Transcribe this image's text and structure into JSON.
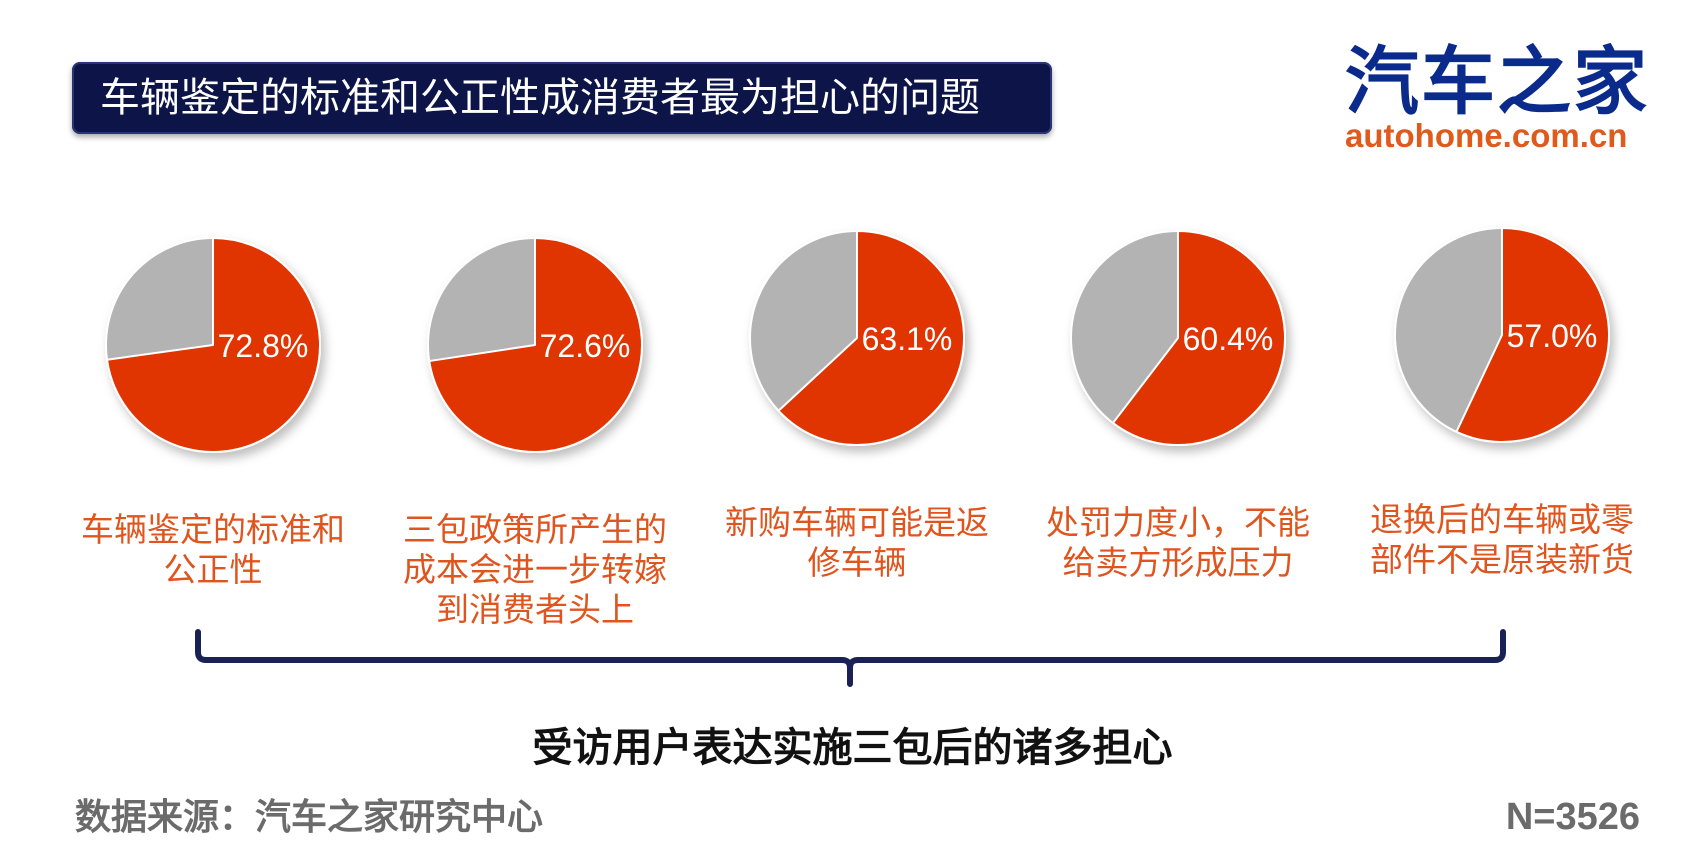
{
  "title": "车辆鉴定的标准和公正性成消费者最为担心的问题",
  "logo": {
    "cn": "汽车之家",
    "en": "autohome.com.cn"
  },
  "chart_data": {
    "type": "pie",
    "colors": {
      "concern": "#e03400",
      "other": "#b3b3b3"
    },
    "items": [
      {
        "value": 72.8,
        "value_label": "72.8%",
        "label_lines": [
          "车辆鉴定的标准和",
          "公正性"
        ]
      },
      {
        "value": 72.6,
        "value_label": "72.6%",
        "label_lines": [
          "三包政策所产生的",
          "成本会进一步转嫁",
          "到消费者头上"
        ]
      },
      {
        "value": 63.1,
        "value_label": "63.1%",
        "label_lines": [
          "新购车辆可能是返",
          "修车辆"
        ]
      },
      {
        "value": 60.4,
        "value_label": "60.4%",
        "label_lines": [
          "处罚力度小，不能",
          "给卖方形成压力"
        ]
      },
      {
        "value": 57.0,
        "value_label": "57.0%",
        "label_lines": [
          "退换后的车辆或零",
          "部件不是原装新货"
        ]
      }
    ]
  },
  "summary": "受访用户表达实施三包后的诸多担心",
  "source": "数据来源：汽车之家研究中心",
  "sample": "N=3526"
}
